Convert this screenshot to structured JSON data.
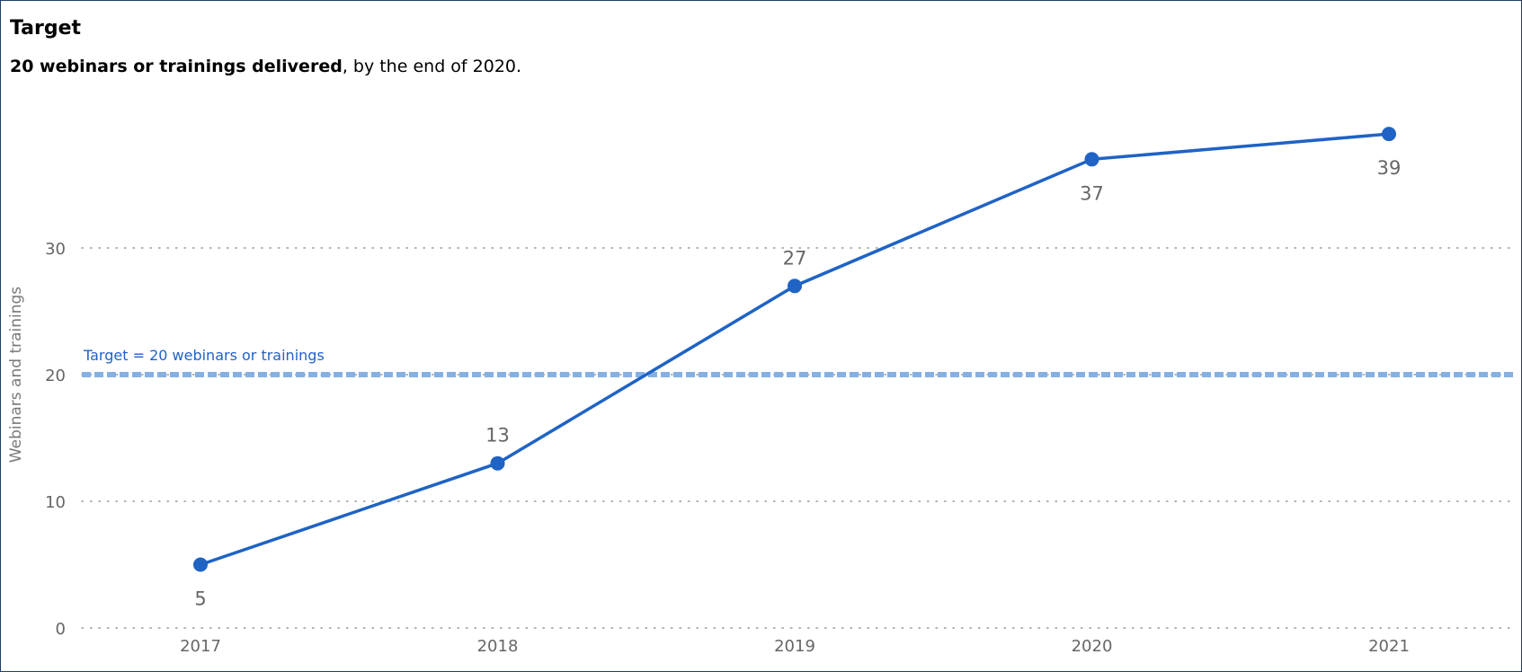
{
  "header": {
    "title": "Target",
    "subtitle_bold": "20 webinars or trainings delivered",
    "subtitle_rest": ", by the end of 2020."
  },
  "colors": {
    "series": "#1f63c4",
    "target_line": "#86b0e2",
    "grid": "#9a9a9a",
    "text_muted": "#666666",
    "frame": "#1f3f6e"
  },
  "chart_data": {
    "type": "line",
    "title": "Target",
    "subtitle": "20 webinars or trainings delivered, by the end of 2020.",
    "xlabel": "",
    "ylabel": "Webinars and trainings",
    "categories": [
      "2017",
      "2018",
      "2019",
      "2020",
      "2021"
    ],
    "series": [
      {
        "values": [
          5,
          13,
          27,
          37,
          39
        ]
      }
    ],
    "data_labels": [
      "5",
      "13",
      "27",
      "37",
      "39"
    ],
    "yticks": [
      0,
      10,
      20,
      30
    ],
    "ylim": [
      0,
      40
    ],
    "grid": true,
    "grid_style": "dotted",
    "reference_line": {
      "value": 20,
      "label": "Target = 20 webinars or trainings"
    }
  }
}
